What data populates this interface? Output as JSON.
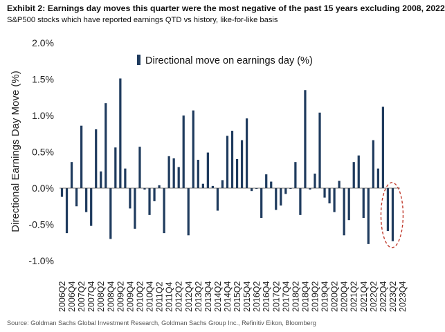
{
  "header": {
    "title": "Exhibit 2: Earnings day moves this quarter were the most negative of the past 15 years excluding 2008, 2022",
    "subtitle": "S&P500 stocks which have reported earnings QTD vs history, like-for-like basis"
  },
  "footer": {
    "source": "Source: Goldman Sachs Global Investment Research, Goldman Sachs Group Inc., Refinitiv Eikon, Bloomberg"
  },
  "colors": {
    "bar": "#1f3b5e",
    "highlight": "#c0392b",
    "axis": "#444444"
  },
  "chart_data": {
    "type": "bar",
    "title": "",
    "xlabel": "",
    "ylabel": "Directional Earnings Day Move (%)",
    "ylim": [
      -1.0,
      2.0
    ],
    "yticks": [
      "-1.0%",
      "-0.5%",
      "0.0%",
      "0.5%",
      "1.0%",
      "1.5%",
      "2.0%"
    ],
    "grid": false,
    "legend": {
      "placement": "top-center"
    },
    "series": [
      {
        "name": "Directional move on earnings day (%)",
        "values": [
          -0.12,
          -0.62,
          0.36,
          -0.25,
          0.86,
          -0.33,
          -0.52,
          0.81,
          0.23,
          1.17,
          -0.7,
          0.56,
          1.51,
          0.27,
          -0.28,
          -0.56,
          0.57,
          -0.02,
          -0.37,
          -0.18,
          0.04,
          -0.62,
          0.44,
          0.41,
          0.29,
          1.0,
          -0.65,
          1.07,
          0.39,
          0.06,
          0.49,
          0.03,
          -0.31,
          0.11,
          0.72,
          0.79,
          0.4,
          0.66,
          0.96,
          -0.04,
          -0.01,
          -0.41,
          0.19,
          0.09,
          -0.3,
          -0.24,
          -0.08,
          -0.01,
          0.36,
          -0.37,
          1.35,
          -0.02,
          0.2,
          1.04,
          -0.13,
          -0.21,
          -0.33,
          0.1,
          -0.65,
          -0.44,
          0.36,
          0.45,
          -0.41,
          -0.77,
          0.66,
          0.27,
          1.12,
          -0.59,
          -0.73
        ]
      }
    ],
    "categories": [
      "2006Q2",
      "2006Q3",
      "2006Q4",
      "2007Q1",
      "2007Q2",
      "2007Q3",
      "2007Q4",
      "2008Q1",
      "2008Q2",
      "2008Q3",
      "2008Q4",
      "2009Q1",
      "2009Q2",
      "2009Q3",
      "2009Q4",
      "2010Q1",
      "2010Q2",
      "2010Q3",
      "2010Q4",
      "2011Q1",
      "2011Q2",
      "2011Q3",
      "2011Q4",
      "2012Q1",
      "2012Q2",
      "2012Q3",
      "2012Q4",
      "2013Q1",
      "2013Q2",
      "2013Q3",
      "2013Q4",
      "2014Q1",
      "2014Q2",
      "2014Q3",
      "2014Q4",
      "2015Q1",
      "2015Q2",
      "2015Q3",
      "2015Q4",
      "2016Q1",
      "2016Q2",
      "2016Q3",
      "2016Q4",
      "2017Q1",
      "2017Q2",
      "2017Q3",
      "2017Q4",
      "2018Q1",
      "2018Q2",
      "2018Q3",
      "2018Q4",
      "2019Q1",
      "2019Q2",
      "2019Q3",
      "2019Q4",
      "2020Q1",
      "2020Q2",
      "2020Q3",
      "2020Q4",
      "2021Q1",
      "2021Q2",
      "2021Q3",
      "2021Q4",
      "2022Q1",
      "2022Q2",
      "2022Q3",
      "2022Q4",
      "2023Q1",
      "2023Q2"
    ],
    "tick_labels": [
      "2006Q2",
      "2006Q4",
      "2007Q2",
      "2007Q4",
      "2008Q2",
      "2008Q4",
      "2009Q2",
      "2009Q4",
      "2010Q2",
      "2010Q4",
      "2011Q2",
      "2011Q4",
      "2012Q2",
      "2012Q4",
      "2013Q2",
      "2013Q4",
      "2014Q2",
      "2014Q4",
      "2015Q2",
      "2015Q4",
      "2016Q2",
      "2016Q4",
      "2017Q2",
      "2017Q4",
      "2018Q2",
      "2018Q4",
      "2019Q2",
      "2019Q4",
      "2020Q2",
      "2020Q4",
      "2021Q2",
      "2021Q4",
      "2022Q2",
      "2022Q4",
      "2023Q2",
      "2023Q4"
    ],
    "annotations": [
      {
        "type": "ellipse",
        "target": "last-bar",
        "style": "dashed"
      }
    ]
  }
}
